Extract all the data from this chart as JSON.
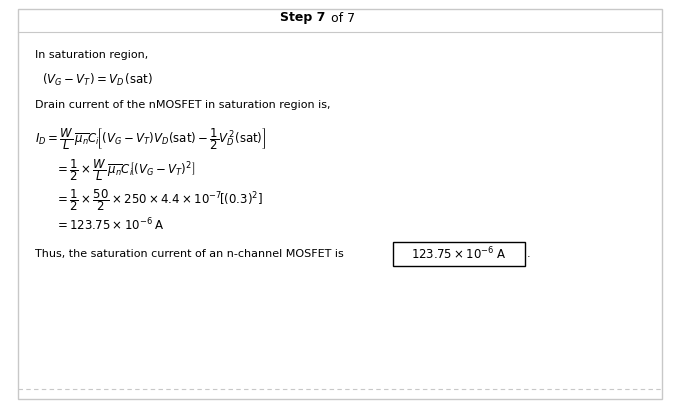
{
  "bg_color": "#ffffff",
  "border_color": "#c8c8c8",
  "step_bold": "Step 7",
  "step_normal": " of 7",
  "line1": "In saturation region,",
  "line2": "$(V_G - V_T) = V_D\\,(\\mathrm{sat})$",
  "line3": "Drain current of the nMOSFET in saturation region is,",
  "eq1": "$I_D = \\dfrac{W}{L}\\,\\overline{\\mu_n} C_i\\!\\left[\\left(V_G - V_T\\right)V_D(\\mathrm{sat}) - \\dfrac{1}{2}V_D^{\\,2}(\\mathrm{sat})\\right]$",
  "eq2": "$= \\dfrac{1}{2} \\times \\dfrac{W}{L}\\,\\overline{\\mu_n} C_i\\!\\left[\\left(V_G - V_T\\right)^2\\right]$",
  "eq3": "$= \\dfrac{1}{2} \\times \\dfrac{50}{2} \\times 250 \\times 4.4 \\times 10^{-7}\\!\\left[(0.3)^2\\right]$",
  "eq4": "$= 123.75 \\times 10^{-6}\\;\\mathrm{A}$",
  "line_final_pre": "Thus, the saturation current of an n-channel MOSFET is",
  "line_final_box": "$123.75\\times10^{-6}\\;\\mathrm{A}$",
  "line_final_period": ".",
  "step_fontsize": 9,
  "body_fontsize": 8,
  "eq_fontsize": 8.5
}
